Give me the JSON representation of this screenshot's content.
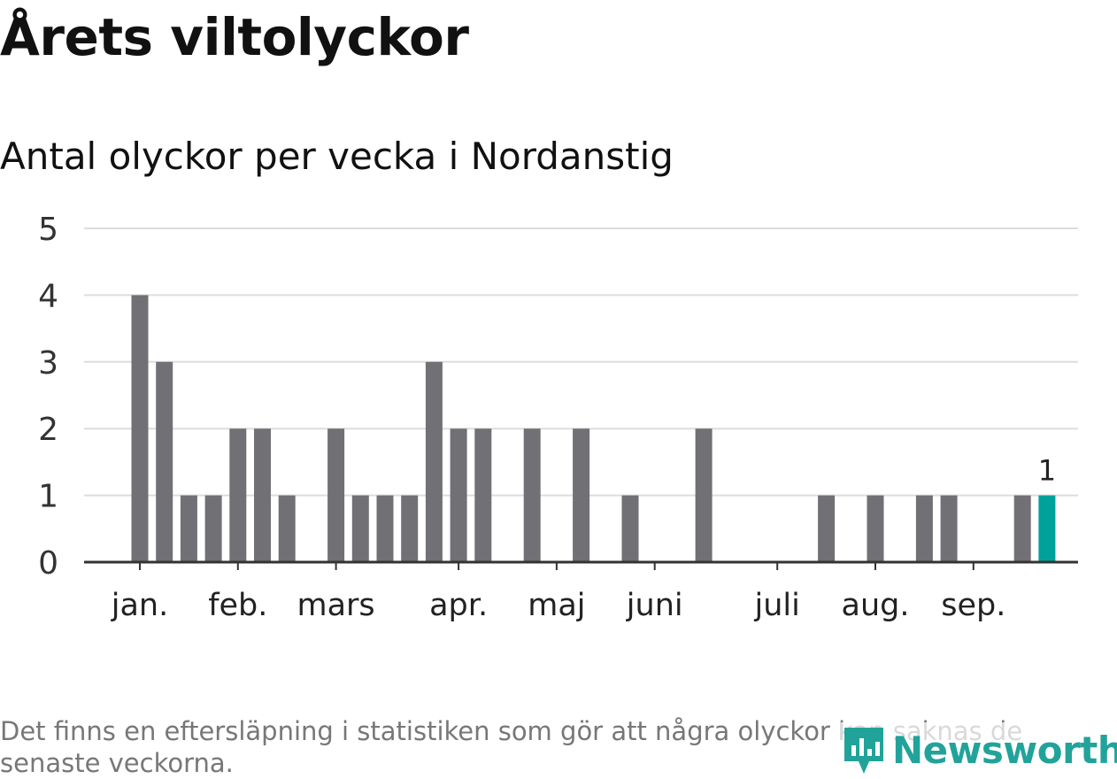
{
  "title": "Årets viltolyckor",
  "subtitle": "Antal olyckor per vecka i Nordanstig",
  "note": "Det finns en eftersläpning i statistiken som gör att några olyckor kan saknas de senaste veckorna.",
  "brand": "Newsworthy",
  "colors": {
    "bar": "#717075",
    "highlight": "#00a19a",
    "grid": "#dddddd",
    "axis": "#333333"
  },
  "chart_data": {
    "type": "bar",
    "title": "Antal olyckor per vecka i Nordanstig",
    "xlabel": "",
    "ylabel": "",
    "ylim": [
      0,
      5
    ],
    "yticks": [
      0,
      1,
      2,
      3,
      4,
      5
    ],
    "grid": true,
    "legend": "none",
    "x": [
      1,
      2,
      3,
      4,
      5,
      6,
      7,
      8,
      9,
      10,
      11,
      12,
      13,
      14,
      15,
      16,
      17,
      18,
      19,
      20,
      21,
      22,
      23,
      24,
      25,
      26,
      27,
      28,
      29,
      30,
      31,
      32,
      33,
      34,
      35,
      36,
      37,
      38
    ],
    "values": [
      4,
      3,
      1,
      1,
      2,
      2,
      1,
      0,
      2,
      1,
      1,
      1,
      3,
      2,
      2,
      0,
      2,
      0,
      2,
      0,
      1,
      0,
      0,
      2,
      0,
      0,
      0,
      0,
      1,
      0,
      1,
      0,
      1,
      1,
      0,
      0,
      1,
      1
    ],
    "highlight_index": 37,
    "data_labels": [
      {
        "index": 37,
        "text": "1"
      }
    ],
    "month_ticks": [
      {
        "label": "jan.",
        "week": 1
      },
      {
        "label": "feb.",
        "week": 5
      },
      {
        "label": "mars",
        "week": 9
      },
      {
        "label": "apr.",
        "week": 14
      },
      {
        "label": "maj",
        "week": 18
      },
      {
        "label": "juni",
        "week": 22
      },
      {
        "label": "juli",
        "week": 27
      },
      {
        "label": "aug.",
        "week": 31
      },
      {
        "label": "sep.",
        "week": 35
      }
    ]
  }
}
